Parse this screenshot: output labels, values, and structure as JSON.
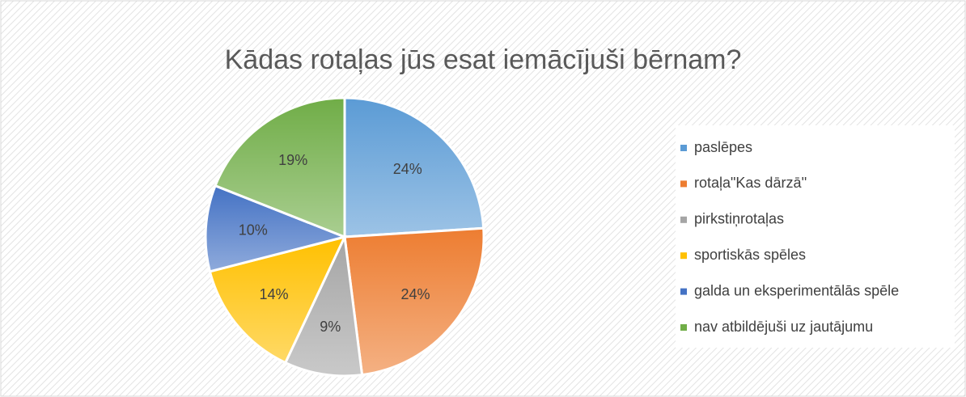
{
  "chart_data": {
    "type": "pie",
    "title": "Kādas rotaļas jūs esat iemācījuši bērnam?",
    "categories": [
      "paslēpes",
      "rotaļa\"Kas dārzā''",
      "pirkstiņrotaļas",
      "sportiskās spēles",
      "galda un eksperimentālās spēle",
      "nav atbildējuši uz jautājumu"
    ],
    "values": [
      24,
      24,
      9,
      14,
      10,
      19
    ],
    "value_labels": [
      "24%",
      "24%",
      "9%",
      "14%",
      "10%",
      "19%"
    ],
    "colors": [
      "#5b9bd5",
      "#ed7d31",
      "#a5a5a5",
      "#ffc000",
      "#4472c4",
      "#70ad47"
    ],
    "legend": "right"
  }
}
